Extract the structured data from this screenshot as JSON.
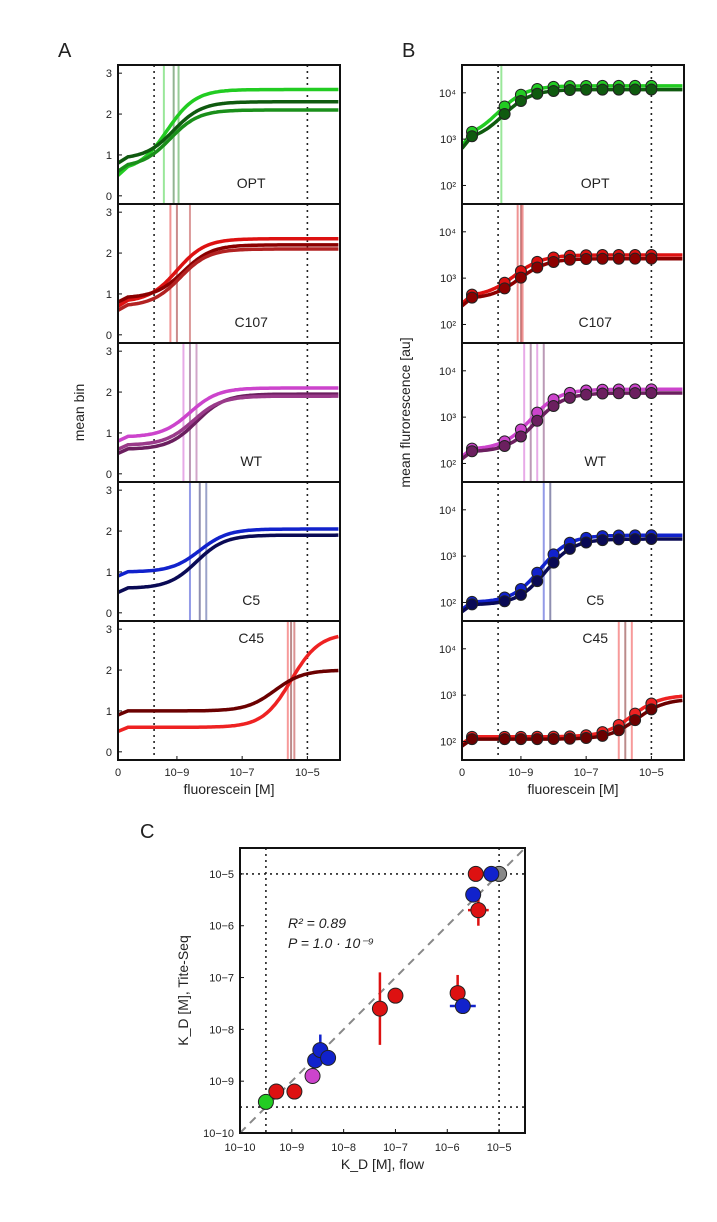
{
  "chart_data": [
    {
      "type": "line",
      "panel_label": "A",
      "ylabel": "mean bin",
      "xlabel": "fluorescein [M]",
      "x_ticks": [
        "0",
        "10−9",
        "10−7",
        "10−5"
      ],
      "y_ticks": [
        "0",
        "1",
        "2",
        "3"
      ],
      "ylim": [
        -0.2,
        3.2
      ],
      "subpanels": [
        {
          "label": "OPT",
          "colors": [
            "#22cc22",
            "#0f5a0f",
            "#1a8f1a"
          ],
          "series": [
            {
              "baseline": 0.6,
              "plateau": 2.6,
              "kd_log": -9.3
            },
            {
              "baseline": 0.9,
              "plateau": 2.3,
              "kd_log": -9.1
            },
            {
              "baseline": 0.7,
              "plateau": 2.1,
              "kd_log": -9.2
            }
          ],
          "kd_lines_log": [
            -9.4,
            -9.1,
            -8.95
          ]
        },
        {
          "label": "C107",
          "colors": [
            "#dd1111",
            "#8b0000",
            "#b22222"
          ],
          "series": [
            {
              "baseline": 0.8,
              "plateau": 2.35,
              "kd_log": -9.0
            },
            {
              "baseline": 0.9,
              "plateau": 2.2,
              "kd_log": -8.8
            },
            {
              "baseline": 0.7,
              "plateau": 2.1,
              "kd_log": -8.9
            }
          ],
          "kd_lines_log": [
            -9.2,
            -9.0,
            -8.6
          ]
        },
        {
          "label": "WT",
          "colors": [
            "#cc44cc",
            "#6b1f5f",
            "#9a3a8a"
          ],
          "series": [
            {
              "baseline": 0.9,
              "plateau": 2.1,
              "kd_log": -8.6
            },
            {
              "baseline": 0.6,
              "plateau": 1.95,
              "kd_log": -8.4
            },
            {
              "baseline": 0.7,
              "plateau": 1.9,
              "kd_log": -8.5
            }
          ],
          "kd_lines_log": [
            -8.8,
            -8.6,
            -8.4
          ]
        },
        {
          "label": "C5",
          "colors": [
            "#1122cc",
            "#0a0a55",
            "#223388"
          ],
          "series": [
            {
              "baseline": 1.0,
              "plateau": 2.05,
              "kd_log": -8.3
            },
            {
              "baseline": 0.6,
              "plateau": 1.9,
              "kd_log": -8.4
            }
          ],
          "kd_lines_log": [
            -8.6,
            -8.3,
            -8.1
          ]
        },
        {
          "label": "C45",
          "colors": [
            "#ee2222",
            "#6b0000",
            "#b01010"
          ],
          "series": [
            {
              "baseline": 0.6,
              "plateau": 2.9,
              "kd_log": -5.5
            },
            {
              "baseline": 1.0,
              "plateau": 2.0,
              "kd_log": -6.0
            }
          ],
          "kd_lines_log": [
            -5.6,
            -5.5,
            -5.4
          ]
        }
      ],
      "dotted_x_log": [
        -9.7,
        -5.0
      ]
    },
    {
      "type": "scatter",
      "panel_label": "B",
      "ylabel": "mean flurorescence [au]",
      "xlabel": "fluorescein [M]",
      "x_ticks": [
        "0",
        "10−9",
        "10−7",
        "10−5"
      ],
      "y_ticks": [
        "10²",
        "10³",
        "10⁴"
      ],
      "ylim_log": [
        1.6,
        4.6
      ],
      "subpanels": [
        {
          "label": "OPT",
          "colors": [
            "#22cc22",
            "#0f5a0f"
          ],
          "baseline_log": 3.0,
          "plateau_log": 4.15,
          "kd_log": -9.7,
          "kd_lines_log": [
            -9.6
          ]
        },
        {
          "label": "C107",
          "colors": [
            "#dd1111",
            "#8b0000"
          ],
          "baseline_log": 2.6,
          "plateau_log": 3.5,
          "kd_log": -9.2,
          "kd_lines_log": [
            -9.1,
            -9.0,
            -8.95
          ]
        },
        {
          "label": "WT",
          "colors": [
            "#cc44cc",
            "#6b1f5f"
          ],
          "baseline_log": 2.3,
          "plateau_log": 3.6,
          "kd_log": -8.7,
          "kd_lines_log": [
            -8.9,
            -8.7,
            -8.5,
            -8.3
          ]
        },
        {
          "label": "C5",
          "colors": [
            "#1122cc",
            "#0a0a55"
          ],
          "baseline_log": 2.0,
          "plateau_log": 3.45,
          "kd_log": -8.4,
          "kd_lines_log": [
            -8.3,
            -8.1
          ]
        },
        {
          "label": "C45",
          "colors": [
            "#ee2222",
            "#6b0000"
          ],
          "baseline_log": 2.1,
          "plateau_log": 3.0,
          "kd_log": -5.6,
          "kd_lines_log": [
            -6.0,
            -5.8,
            -5.6
          ]
        }
      ],
      "dotted_x_log": [
        -9.7,
        -5.0
      ]
    },
    {
      "type": "scatter",
      "panel_label": "C",
      "xlabel": "K_D [M], flow",
      "ylabel": "K_D [M], Tite-Seq",
      "xlim_log": [
        -10,
        -4.5
      ],
      "ylim_log": [
        -10,
        -4.5
      ],
      "x_ticks": [
        "10−10",
        "10−9",
        "10−8",
        "10−7",
        "10−6",
        "10−5"
      ],
      "y_ticks": [
        "10−10",
        "10−9",
        "10−8",
        "10−7",
        "10−6",
        "10−5"
      ],
      "annotation_r2": "R² = 0.89",
      "annotation_p": "P = 1.0 · 10⁻⁹",
      "points": [
        {
          "x": -9.5,
          "y": -9.4,
          "color": "#22cc22",
          "ex": 0,
          "ey": 0
        },
        {
          "x": -9.3,
          "y": -9.2,
          "color": "#dd1111",
          "ex": 0,
          "ey": 0
        },
        {
          "x": -8.95,
          "y": -9.2,
          "color": "#dd1111",
          "ex": 0,
          "ey": 0
        },
        {
          "x": -8.6,
          "y": -8.9,
          "color": "#cc44cc",
          "ex": 0,
          "ey": 0
        },
        {
          "x": -8.55,
          "y": -8.6,
          "color": "#1122cc",
          "ex": 0,
          "ey": 0
        },
        {
          "x": -8.45,
          "y": -8.4,
          "color": "#1122cc",
          "ex": 0,
          "ey": 0.3
        },
        {
          "x": -8.3,
          "y": -8.55,
          "color": "#1122cc",
          "ex": 0,
          "ey": 0
        },
        {
          "x": -7.3,
          "y": -7.6,
          "color": "#dd1111",
          "ex": 0,
          "ey": 0.7
        },
        {
          "x": -7.0,
          "y": -7.35,
          "color": "#dd1111",
          "ex": 0.1,
          "ey": 0
        },
        {
          "x": -5.8,
          "y": -7.3,
          "color": "#dd1111",
          "ex": 0,
          "ey": 0.35
        },
        {
          "x": -5.7,
          "y": -7.55,
          "color": "#1122cc",
          "ex": 0.25,
          "ey": 0
        },
        {
          "x": -5.4,
          "y": -5.7,
          "color": "#dd1111",
          "ex": 0.2,
          "ey": 0.3
        },
        {
          "x": -5.5,
          "y": -5.4,
          "color": "#1122cc",
          "ex": 0,
          "ey": 0
        },
        {
          "x": -5.45,
          "y": -5.0,
          "color": "#dd1111",
          "ex": 0,
          "ey": 0
        },
        {
          "x": -5.0,
          "y": -5.0,
          "color": "#888888",
          "ex": 0,
          "ey": 0
        },
        {
          "x": -5.15,
          "y": -5.0,
          "color": "#1122cc",
          "ex": 0,
          "ey": 0
        }
      ],
      "dotted_x_log": [
        -9.5,
        -5.0
      ],
      "dotted_y_log": [
        -9.5,
        -5.0
      ]
    }
  ]
}
